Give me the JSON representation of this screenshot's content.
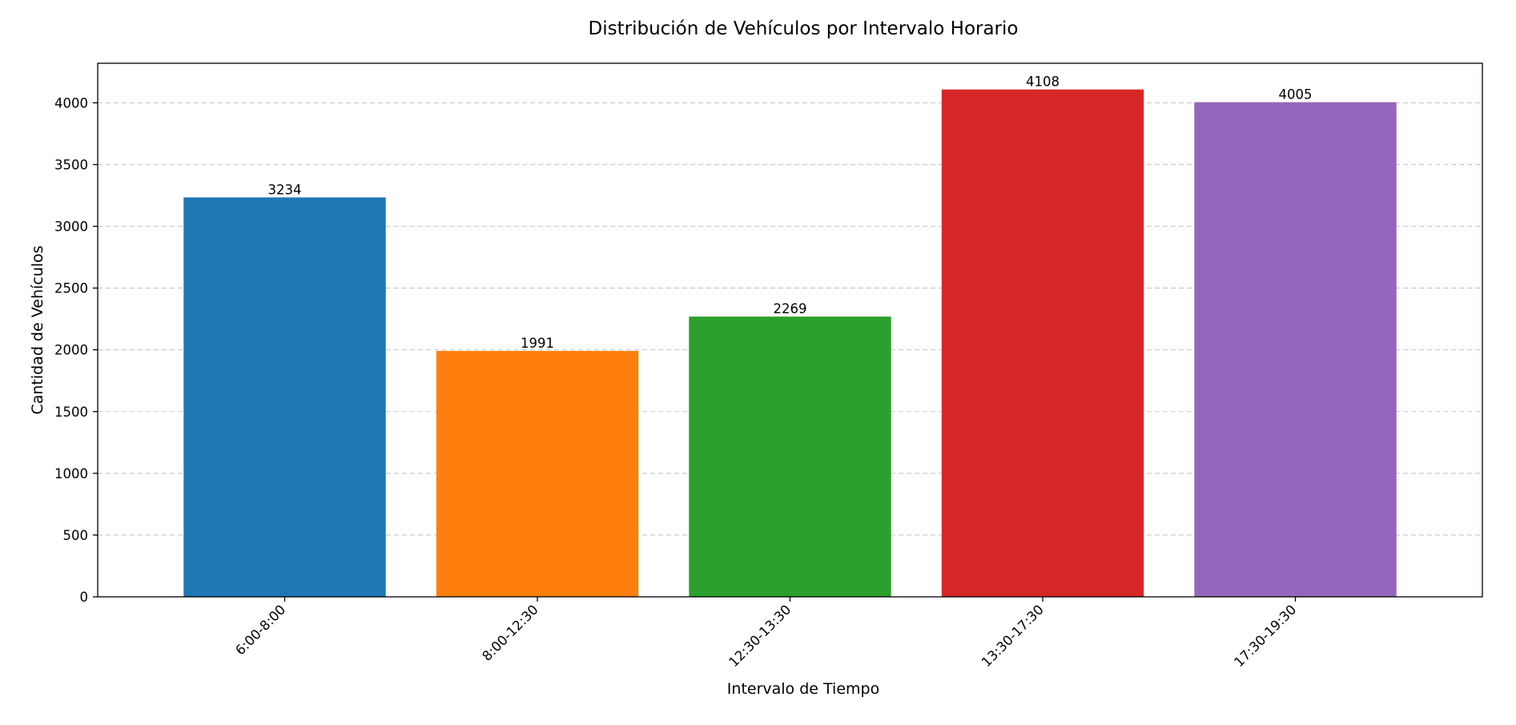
{
  "chart_data": {
    "type": "bar",
    "title": "Distribución de Vehículos por Intervalo Horario",
    "xlabel": "Intervalo de Tiempo",
    "ylabel": "Cantidad de Vehículos",
    "categories": [
      "6:00-8:00",
      "8:00-12:30",
      "12:30-13:30",
      "13:30-17:30",
      "17:30-19:30"
    ],
    "values": [
      3234,
      1991,
      2269,
      4108,
      4005
    ],
    "data_labels": [
      "3234",
      "1991",
      "2269",
      "4108",
      "4005"
    ],
    "colors": [
      "#1f77b4",
      "#ff7f0e",
      "#2ca02c",
      "#d62728",
      "#9467bd"
    ],
    "ylim": [
      0,
      4320
    ],
    "yticks": [
      0,
      500,
      1000,
      1500,
      2000,
      2500,
      3000,
      3500,
      4000
    ],
    "ytick_labels": [
      "0",
      "500",
      "1000",
      "1500",
      "2000",
      "2500",
      "3000",
      "3500",
      "4000"
    ],
    "grid": "y-dashed",
    "legend": "none",
    "xtick_rotation": "45"
  }
}
